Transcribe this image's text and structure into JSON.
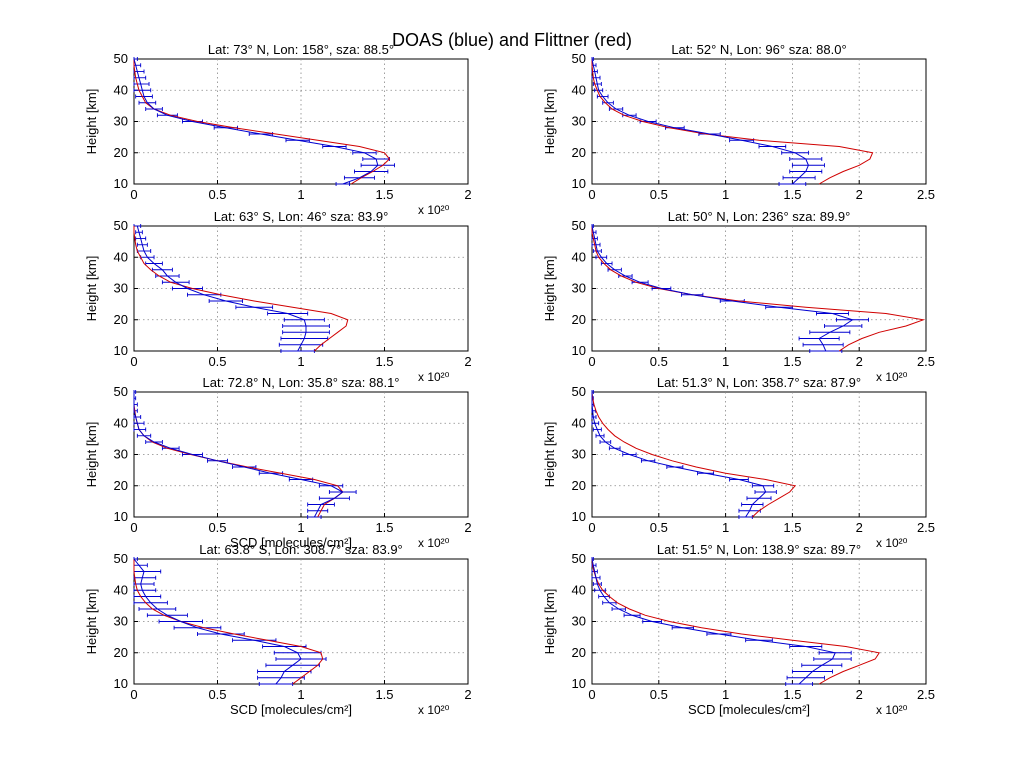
{
  "figure": {
    "suptitle": "DOAS (blue) and Flittner (red)"
  },
  "colors": {
    "doas": "#0000d0",
    "flittner": "#d00000"
  },
  "chart_data": [
    {
      "type": "line",
      "title": "Lat: 73° N, Lon: 158°, sza: 88.5°",
      "xlabel": "",
      "ylabel": "Height [km]",
      "xscale_note": "x 10²⁰",
      "xlim": [
        0,
        2
      ],
      "ylim": [
        10,
        50
      ],
      "xticks": [
        "0",
        "0.5",
        "1",
        "1.5",
        "2"
      ],
      "yticks": [
        "10",
        "20",
        "30",
        "40",
        "50"
      ],
      "height": [
        10,
        12,
        14,
        16,
        18,
        20,
        22,
        24,
        26,
        28,
        30,
        32,
        34,
        36,
        38,
        40,
        42,
        44,
        46,
        48,
        50
      ],
      "series": [
        {
          "name": "DOAS",
          "values": [
            1.25,
            1.35,
            1.42,
            1.46,
            1.45,
            1.38,
            1.2,
            0.98,
            0.76,
            0.55,
            0.35,
            0.2,
            0.12,
            0.08,
            0.06,
            0.05,
            0.04,
            0.03,
            0.02,
            0.01,
            0.0
          ],
          "err": [
            0.04,
            0.09,
            0.1,
            0.1,
            0.08,
            0.07,
            0.07,
            0.07,
            0.07,
            0.07,
            0.06,
            0.06,
            0.05,
            0.05,
            0.05,
            0.05,
            0.05,
            0.04,
            0.04,
            0.03,
            0.02
          ]
        },
        {
          "name": "Flittner",
          "values": [
            1.3,
            1.36,
            1.43,
            1.49,
            1.53,
            1.5,
            1.35,
            1.1,
            0.85,
            0.6,
            0.38,
            0.22,
            0.12,
            0.07,
            0.05,
            0.03,
            0.02,
            0.01,
            0.005,
            0.0,
            0.0
          ]
        }
      ]
    },
    {
      "type": "line",
      "title": "Lat: 52° N, Lon: 96° sza: 88.0°",
      "xlabel": "",
      "ylabel": "Height [km]",
      "xscale_note": "",
      "xlim": [
        0,
        2.5
      ],
      "ylim": [
        10,
        50
      ],
      "xticks": [
        "0",
        "0.5",
        "1",
        "1.5",
        "2",
        "2.5"
      ],
      "yticks": [
        "10",
        "20",
        "30",
        "40",
        "50"
      ],
      "height": [
        10,
        12,
        14,
        16,
        18,
        20,
        22,
        24,
        26,
        28,
        30,
        32,
        34,
        36,
        38,
        40,
        42,
        44,
        46,
        48,
        50
      ],
      "series": [
        {
          "name": "DOAS",
          "values": [
            1.5,
            1.55,
            1.6,
            1.62,
            1.6,
            1.52,
            1.35,
            1.12,
            0.88,
            0.62,
            0.42,
            0.28,
            0.18,
            0.12,
            0.08,
            0.05,
            0.04,
            0.03,
            0.02,
            0.01,
            0.0
          ],
          "err": [
            0.1,
            0.12,
            0.12,
            0.12,
            0.12,
            0.1,
            0.1,
            0.09,
            0.08,
            0.07,
            0.06,
            0.05,
            0.05,
            0.04,
            0.04,
            0.03,
            0.03,
            0.03,
            0.02,
            0.02,
            0.01
          ]
        },
        {
          "name": "Flittner",
          "values": [
            1.7,
            1.78,
            1.88,
            2.0,
            2.08,
            2.1,
            1.85,
            1.25,
            0.85,
            0.58,
            0.38,
            0.24,
            0.15,
            0.1,
            0.06,
            0.04,
            0.02,
            0.01,
            0.005,
            0.0,
            0.0
          ]
        }
      ]
    },
    {
      "type": "line",
      "title": "Lat: 63° S, Lon: 46° sza: 83.9°",
      "xlabel": "",
      "ylabel": "Height [km]",
      "xscale_note": "x 10²⁰",
      "xlim": [
        0,
        2
      ],
      "ylim": [
        10,
        50
      ],
      "xticks": [
        "0",
        "0.5",
        "1",
        "1.5",
        "2"
      ],
      "yticks": [
        "10",
        "20",
        "30",
        "40",
        "50"
      ],
      "height": [
        10,
        12,
        14,
        16,
        18,
        20,
        22,
        24,
        26,
        28,
        30,
        32,
        34,
        36,
        38,
        40,
        42,
        44,
        46,
        48,
        50
      ],
      "series": [
        {
          "name": "DOAS",
          "values": [
            0.98,
            1.0,
            1.02,
            1.03,
            1.03,
            1.02,
            0.92,
            0.72,
            0.55,
            0.42,
            0.32,
            0.25,
            0.2,
            0.17,
            0.12,
            0.08,
            0.06,
            0.05,
            0.04,
            0.03,
            0.02
          ],
          "err": [
            0.1,
            0.13,
            0.14,
            0.14,
            0.14,
            0.12,
            0.12,
            0.11,
            0.1,
            0.1,
            0.09,
            0.08,
            0.07,
            0.06,
            0.05,
            0.04,
            0.04,
            0.03,
            0.03,
            0.02,
            0.02
          ]
        },
        {
          "name": "Flittner",
          "values": [
            1.08,
            1.12,
            1.17,
            1.22,
            1.27,
            1.28,
            1.18,
            0.95,
            0.72,
            0.52,
            0.35,
            0.22,
            0.15,
            0.1,
            0.06,
            0.04,
            0.02,
            0.01,
            0.005,
            0.0,
            0.0
          ]
        }
      ]
    },
    {
      "type": "line",
      "title": "Lat: 50° N, Lon: 236° sza: 89.9°",
      "xlabel": "",
      "ylabel": "Height [km]",
      "xscale_note": "x 10²⁰",
      "xlim": [
        0,
        2.5
      ],
      "ylim": [
        10,
        50
      ],
      "xticks": [
        "0",
        "0.5",
        "1",
        "1.5",
        "2",
        "2.5"
      ],
      "yticks": [
        "10",
        "20",
        "30",
        "40",
        "50"
      ],
      "height": [
        10,
        12,
        14,
        16,
        18,
        20,
        22,
        24,
        26,
        28,
        30,
        32,
        34,
        36,
        38,
        40,
        42,
        44,
        46,
        48,
        50
      ],
      "series": [
        {
          "name": "DOAS",
          "values": [
            1.75,
            1.73,
            1.7,
            1.78,
            1.88,
            1.95,
            1.8,
            1.4,
            1.05,
            0.75,
            0.52,
            0.36,
            0.25,
            0.17,
            0.11,
            0.07,
            0.04,
            0.03,
            0.02,
            0.01,
            0.0
          ],
          "err": [
            0.12,
            0.15,
            0.15,
            0.15,
            0.14,
            0.12,
            0.12,
            0.1,
            0.09,
            0.08,
            0.07,
            0.06,
            0.05,
            0.05,
            0.04,
            0.04,
            0.03,
            0.03,
            0.02,
            0.02,
            0.01
          ]
        },
        {
          "name": "Flittner",
          "values": [
            1.85,
            1.92,
            2.02,
            2.15,
            2.35,
            2.48,
            2.2,
            1.6,
            1.1,
            0.75,
            0.5,
            0.33,
            0.22,
            0.14,
            0.09,
            0.05,
            0.03,
            0.02,
            0.01,
            0.0,
            0.0
          ]
        }
      ]
    },
    {
      "type": "line",
      "title": "Lat: 72.8° N, Lon: 35.8° sza: 88.1°",
      "xlabel": "SCD [molecules/cm²]",
      "ylabel": "Height [km]",
      "xscale_note": "x 10²⁰",
      "xlim": [
        0,
        2
      ],
      "ylim": [
        10,
        50
      ],
      "xticks": [
        "0",
        "0.5",
        "1",
        "1.5",
        "2"
      ],
      "yticks": [
        "10",
        "20",
        "30",
        "40",
        "50"
      ],
      "height": [
        10,
        12,
        14,
        16,
        18,
        20,
        22,
        24,
        26,
        28,
        30,
        32,
        34,
        36,
        38,
        40,
        42,
        44,
        46,
        48,
        50
      ],
      "series": [
        {
          "name": "DOAS",
          "values": [
            1.08,
            1.1,
            1.12,
            1.2,
            1.25,
            1.18,
            1.0,
            0.82,
            0.66,
            0.5,
            0.35,
            0.22,
            0.12,
            0.06,
            0.03,
            0.02,
            0.01,
            0.0,
            0.0,
            0.0,
            0.0
          ],
          "err": [
            0.04,
            0.06,
            0.08,
            0.09,
            0.08,
            0.07,
            0.07,
            0.07,
            0.07,
            0.06,
            0.06,
            0.05,
            0.05,
            0.04,
            0.04,
            0.04,
            0.03,
            0.02,
            0.02,
            0.01,
            0.01
          ]
        },
        {
          "name": "Flittner",
          "values": [
            1.1,
            1.12,
            1.14,
            1.2,
            1.25,
            1.22,
            1.08,
            0.88,
            0.68,
            0.5,
            0.34,
            0.2,
            0.11,
            0.06,
            0.03,
            0.02,
            0.01,
            0.005,
            0.0,
            0.0,
            0.0
          ]
        }
      ]
    },
    {
      "type": "line",
      "title": "Lat: 51.3° N, Lon: 358.7° sza: 87.9°",
      "xlabel": "",
      "ylabel": "Height [km]",
      "xscale_note": "x 10²⁰",
      "xlim": [
        0,
        2.5
      ],
      "ylim": [
        10,
        50
      ],
      "xticks": [
        "0",
        "0.5",
        "1",
        "1.5",
        "2",
        "2.5"
      ],
      "yticks": [
        "10",
        "20",
        "30",
        "40",
        "50"
      ],
      "height": [
        10,
        12,
        14,
        16,
        18,
        20,
        22,
        24,
        26,
        28,
        30,
        32,
        34,
        36,
        38,
        40,
        42,
        44,
        46,
        48,
        50
      ],
      "series": [
        {
          "name": "DOAS",
          "values": [
            1.15,
            1.18,
            1.2,
            1.25,
            1.3,
            1.28,
            1.1,
            0.85,
            0.62,
            0.42,
            0.28,
            0.17,
            0.1,
            0.06,
            0.04,
            0.02,
            0.01,
            0.005,
            0.0,
            0.0,
            0.0
          ],
          "err": [
            0.05,
            0.08,
            0.08,
            0.09,
            0.08,
            0.08,
            0.07,
            0.06,
            0.06,
            0.05,
            0.05,
            0.04,
            0.04,
            0.03,
            0.03,
            0.03,
            0.02,
            0.02,
            0.01,
            0.01,
            0.01
          ]
        },
        {
          "name": "Flittner",
          "values": [
            1.2,
            1.25,
            1.32,
            1.4,
            1.48,
            1.52,
            1.3,
            1.0,
            0.78,
            0.6,
            0.45,
            0.33,
            0.24,
            0.17,
            0.12,
            0.08,
            0.05,
            0.03,
            0.015,
            0.005,
            0.0
          ]
        }
      ]
    },
    {
      "type": "line",
      "title": "Lat: 63.8° S, Lon: 308.7° sza: 83.9°",
      "xlabel": "SCD [molecules/cm²]",
      "ylabel": "Height [km]",
      "xscale_note": "x 10²⁰",
      "xlim": [
        0,
        2
      ],
      "ylim": [
        10,
        50
      ],
      "xticks": [
        "0",
        "0.5",
        "1",
        "1.5",
        "2"
      ],
      "yticks": [
        "10",
        "20",
        "30",
        "40",
        "50"
      ],
      "height": [
        10,
        12,
        14,
        16,
        18,
        20,
        22,
        24,
        26,
        28,
        30,
        32,
        34,
        36,
        38,
        40,
        42,
        44,
        46,
        48,
        50
      ],
      "series": [
        {
          "name": "DOAS",
          "values": [
            0.85,
            0.88,
            0.9,
            0.95,
            1.0,
            0.98,
            0.9,
            0.72,
            0.52,
            0.38,
            0.28,
            0.2,
            0.14,
            0.1,
            0.07,
            0.05,
            0.04,
            0.05,
            0.06,
            0.03,
            0.0
          ],
          "err": [
            0.1,
            0.14,
            0.16,
            0.16,
            0.15,
            0.14,
            0.13,
            0.13,
            0.14,
            0.14,
            0.13,
            0.12,
            0.11,
            0.1,
            0.09,
            0.08,
            0.08,
            0.08,
            0.1,
            0.05,
            0.02
          ]
        },
        {
          "name": "Flittner",
          "values": [
            0.95,
            1.0,
            1.05,
            1.1,
            1.13,
            1.12,
            1.0,
            0.8,
            0.6,
            0.42,
            0.28,
            0.18,
            0.11,
            0.07,
            0.04,
            0.02,
            0.01,
            0.005,
            0.0,
            0.0,
            0.0
          ]
        }
      ]
    },
    {
      "type": "line",
      "title": "Lat: 51.5° N, Lon: 138.9° sza: 89.7°",
      "xlabel": "SCD [molecules/cm²]",
      "ylabel": "Height [km]",
      "xscale_note": "x 10²⁰",
      "xlim": [
        0,
        2.5
      ],
      "ylim": [
        10,
        50
      ],
      "xticks": [
        "0",
        "0.5",
        "1",
        "1.5",
        "2",
        "2.5"
      ],
      "yticks": [
        "10",
        "20",
        "30",
        "40",
        "50"
      ],
      "height": [
        10,
        12,
        14,
        16,
        18,
        20,
        22,
        24,
        26,
        28,
        30,
        32,
        34,
        36,
        38,
        40,
        42,
        44,
        46,
        48,
        50
      ],
      "series": [
        {
          "name": "DOAS",
          "values": [
            1.55,
            1.6,
            1.65,
            1.72,
            1.8,
            1.82,
            1.6,
            1.25,
            0.95,
            0.68,
            0.45,
            0.3,
            0.2,
            0.13,
            0.09,
            0.06,
            0.04,
            0.03,
            0.02,
            0.01,
            0.0
          ],
          "err": [
            0.1,
            0.14,
            0.15,
            0.15,
            0.14,
            0.12,
            0.12,
            0.1,
            0.09,
            0.08,
            0.07,
            0.06,
            0.05,
            0.05,
            0.04,
            0.04,
            0.03,
            0.03,
            0.02,
            0.02,
            0.01
          ]
        },
        {
          "name": "Flittner",
          "values": [
            1.7,
            1.78,
            1.88,
            2.0,
            2.12,
            2.15,
            1.9,
            1.5,
            1.12,
            0.82,
            0.58,
            0.4,
            0.28,
            0.19,
            0.13,
            0.08,
            0.05,
            0.03,
            0.015,
            0.005,
            0.0
          ]
        }
      ]
    }
  ]
}
